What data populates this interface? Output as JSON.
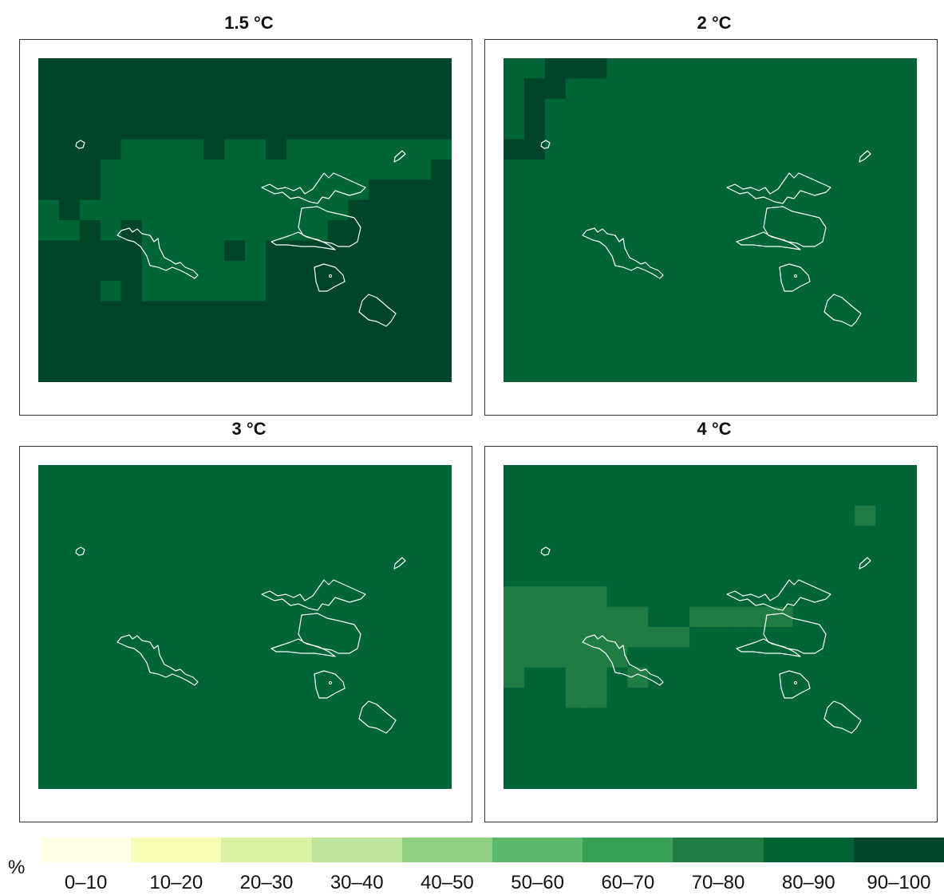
{
  "panels": [
    {
      "title": "1.5 °C",
      "base_class": "90–100",
      "cells": [
        {
          "c": 4,
          "r": 4,
          "v": "80–90"
        },
        {
          "c": 5,
          "r": 4,
          "v": "80–90"
        },
        {
          "c": 6,
          "r": 4,
          "v": "80–90"
        },
        {
          "c": 7,
          "r": 4,
          "v": "80–90"
        },
        {
          "c": 9,
          "r": 4,
          "v": "80–90"
        },
        {
          "c": 10,
          "r": 4,
          "v": "80–90"
        },
        {
          "c": 12,
          "r": 4,
          "v": "80–90"
        },
        {
          "c": 13,
          "r": 4,
          "v": "80–90"
        },
        {
          "c": 14,
          "r": 4,
          "v": "80–90"
        },
        {
          "c": 15,
          "r": 4,
          "v": "80–90"
        },
        {
          "c": 16,
          "r": 4,
          "v": "80–90"
        },
        {
          "c": 17,
          "r": 4,
          "v": "80–90"
        },
        {
          "c": 18,
          "r": 4,
          "v": "80–90"
        },
        {
          "c": 19,
          "r": 4,
          "v": "80–90"
        },
        {
          "c": 21,
          "r": 4,
          "v": "80–90"
        },
        {
          "c": 3,
          "r": 5,
          "v": "80–90"
        },
        {
          "c": 4,
          "r": 5,
          "v": "80–90"
        },
        {
          "c": 5,
          "r": 5,
          "v": "80–90"
        },
        {
          "c": 6,
          "r": 5,
          "v": "80–90"
        },
        {
          "c": 7,
          "r": 5,
          "v": "80–90"
        },
        {
          "c": 8,
          "r": 5,
          "v": "80–90"
        },
        {
          "c": 9,
          "r": 5,
          "v": "80–90"
        },
        {
          "c": 10,
          "r": 5,
          "v": "80–90"
        },
        {
          "c": 11,
          "r": 5,
          "v": "80–90"
        },
        {
          "c": 12,
          "r": 5,
          "v": "80–90"
        },
        {
          "c": 13,
          "r": 5,
          "v": "80–90"
        },
        {
          "c": 14,
          "r": 5,
          "v": "80–90"
        },
        {
          "c": 15,
          "r": 5,
          "v": "80–90"
        },
        {
          "c": 16,
          "r": 5,
          "v": "80–90"
        },
        {
          "c": 17,
          "r": 5,
          "v": "80–90"
        },
        {
          "c": 18,
          "r": 5,
          "v": "80–90"
        },
        {
          "c": 3,
          "r": 6,
          "v": "80–90"
        },
        {
          "c": 4,
          "r": 6,
          "v": "80–90"
        },
        {
          "c": 5,
          "r": 6,
          "v": "80–90"
        },
        {
          "c": 6,
          "r": 6,
          "v": "80–90"
        },
        {
          "c": 7,
          "r": 6,
          "v": "80–90"
        },
        {
          "c": 8,
          "r": 6,
          "v": "80–90"
        },
        {
          "c": 9,
          "r": 6,
          "v": "80–90"
        },
        {
          "c": 10,
          "r": 6,
          "v": "80–90"
        },
        {
          "c": 11,
          "r": 6,
          "v": "80–90"
        },
        {
          "c": 12,
          "r": 6,
          "v": "80–90"
        },
        {
          "c": 13,
          "r": 6,
          "v": "80–90"
        },
        {
          "c": 14,
          "r": 6,
          "v": "80–90"
        },
        {
          "c": 15,
          "r": 6,
          "v": "80–90"
        },
        {
          "c": 0,
          "r": 7,
          "v": "80–90"
        },
        {
          "c": 2,
          "r": 7,
          "v": "80–90"
        },
        {
          "c": 3,
          "r": 7,
          "v": "80–90"
        },
        {
          "c": 4,
          "r": 7,
          "v": "80–90"
        },
        {
          "c": 5,
          "r": 7,
          "v": "80–90"
        },
        {
          "c": 6,
          "r": 7,
          "v": "80–90"
        },
        {
          "c": 7,
          "r": 7,
          "v": "80–90"
        },
        {
          "c": 8,
          "r": 7,
          "v": "80–90"
        },
        {
          "c": 9,
          "r": 7,
          "v": "80–90"
        },
        {
          "c": 10,
          "r": 7,
          "v": "80–90"
        },
        {
          "c": 11,
          "r": 7,
          "v": "80–90"
        },
        {
          "c": 12,
          "r": 7,
          "v": "80–90"
        },
        {
          "c": 13,
          "r": 7,
          "v": "80–90"
        },
        {
          "c": 14,
          "r": 7,
          "v": "80–90"
        },
        {
          "c": 0,
          "r": 8,
          "v": "80–90"
        },
        {
          "c": 1,
          "r": 8,
          "v": "80–90"
        },
        {
          "c": 3,
          "r": 8,
          "v": "80–90"
        },
        {
          "c": 5,
          "r": 8,
          "v": "80–90"
        },
        {
          "c": 6,
          "r": 8,
          "v": "80–90"
        },
        {
          "c": 7,
          "r": 8,
          "v": "80–90"
        },
        {
          "c": 8,
          "r": 8,
          "v": "80–90"
        },
        {
          "c": 9,
          "r": 8,
          "v": "80–90"
        },
        {
          "c": 10,
          "r": 8,
          "v": "80–90"
        },
        {
          "c": 11,
          "r": 8,
          "v": "80–90"
        },
        {
          "c": 12,
          "r": 8,
          "v": "80–90"
        },
        {
          "c": 13,
          "r": 8,
          "v": "80–90"
        },
        {
          "c": 5,
          "r": 9,
          "v": "80–90"
        },
        {
          "c": 6,
          "r": 9,
          "v": "80–90"
        },
        {
          "c": 7,
          "r": 9,
          "v": "80–90"
        },
        {
          "c": 8,
          "r": 9,
          "v": "80–90"
        },
        {
          "c": 10,
          "r": 9,
          "v": "80–90"
        },
        {
          "c": 5,
          "r": 10,
          "v": "80–90"
        },
        {
          "c": 6,
          "r": 10,
          "v": "80–90"
        },
        {
          "c": 7,
          "r": 10,
          "v": "80–90"
        },
        {
          "c": 8,
          "r": 10,
          "v": "80–90"
        },
        {
          "c": 9,
          "r": 10,
          "v": "80–90"
        },
        {
          "c": 10,
          "r": 10,
          "v": "80–90"
        },
        {
          "c": 3,
          "r": 11,
          "v": "80–90"
        },
        {
          "c": 5,
          "r": 11,
          "v": "80–90"
        },
        {
          "c": 6,
          "r": 11,
          "v": "80–90"
        },
        {
          "c": 7,
          "r": 11,
          "v": "80–90"
        },
        {
          "c": 8,
          "r": 11,
          "v": "80–90"
        },
        {
          "c": 9,
          "r": 11,
          "v": "80–90"
        },
        {
          "c": 10,
          "r": 11,
          "v": "80–90"
        }
      ]
    },
    {
      "title": "2 °C",
      "base_class": "80–90",
      "cells": [
        {
          "c": 2,
          "r": 0,
          "v": "90–100"
        },
        {
          "c": 3,
          "r": 0,
          "v": "90–100"
        },
        {
          "c": 4,
          "r": 0,
          "v": "90–100"
        },
        {
          "c": 1,
          "r": 1,
          "v": "90–100"
        },
        {
          "c": 2,
          "r": 1,
          "v": "90–100"
        },
        {
          "c": 1,
          "r": 2,
          "v": "90–100"
        },
        {
          "c": 1,
          "r": 3,
          "v": "90–100"
        },
        {
          "c": 0,
          "r": 4,
          "v": "90–100"
        },
        {
          "c": 1,
          "r": 4,
          "v": "90–100"
        }
      ]
    },
    {
      "title": "3 °C",
      "base_class": "80–90",
      "cells": []
    },
    {
      "title": "4 °C",
      "base_class": "80–90",
      "cells": [
        {
          "c": 17,
          "r": 2,
          "v": "70–80"
        },
        {
          "c": 0,
          "r": 6,
          "v": "70–80"
        },
        {
          "c": 1,
          "r": 6,
          "v": "70–80"
        },
        {
          "c": 2,
          "r": 6,
          "v": "70–80"
        },
        {
          "c": 3,
          "r": 6,
          "v": "70–80"
        },
        {
          "c": 4,
          "r": 6,
          "v": "70–80"
        },
        {
          "c": 0,
          "r": 7,
          "v": "70–80"
        },
        {
          "c": 1,
          "r": 7,
          "v": "70–80"
        },
        {
          "c": 2,
          "r": 7,
          "v": "70–80"
        },
        {
          "c": 3,
          "r": 7,
          "v": "70–80"
        },
        {
          "c": 4,
          "r": 7,
          "v": "70–80"
        },
        {
          "c": 5,
          "r": 7,
          "v": "70–80"
        },
        {
          "c": 6,
          "r": 7,
          "v": "70–80"
        },
        {
          "c": 9,
          "r": 7,
          "v": "70–80"
        },
        {
          "c": 10,
          "r": 7,
          "v": "70–80"
        },
        {
          "c": 11,
          "r": 7,
          "v": "70–80"
        },
        {
          "c": 12,
          "r": 7,
          "v": "70–80"
        },
        {
          "c": 13,
          "r": 7,
          "v": "70–80"
        },
        {
          "c": 0,
          "r": 8,
          "v": "70–80"
        },
        {
          "c": 1,
          "r": 8,
          "v": "70–80"
        },
        {
          "c": 2,
          "r": 8,
          "v": "70–80"
        },
        {
          "c": 3,
          "r": 8,
          "v": "70–80"
        },
        {
          "c": 4,
          "r": 8,
          "v": "70–80"
        },
        {
          "c": 5,
          "r": 8,
          "v": "70–80"
        },
        {
          "c": 6,
          "r": 8,
          "v": "70–80"
        },
        {
          "c": 7,
          "r": 8,
          "v": "70–80"
        },
        {
          "c": 8,
          "r": 8,
          "v": "70–80"
        },
        {
          "c": 0,
          "r": 9,
          "v": "70–80"
        },
        {
          "c": 1,
          "r": 9,
          "v": "70–80"
        },
        {
          "c": 2,
          "r": 9,
          "v": "70–80"
        },
        {
          "c": 3,
          "r": 9,
          "v": "70–80"
        },
        {
          "c": 4,
          "r": 9,
          "v": "70–80"
        },
        {
          "c": 5,
          "r": 9,
          "v": "70–80"
        },
        {
          "c": 0,
          "r": 10,
          "v": "70–80"
        },
        {
          "c": 3,
          "r": 10,
          "v": "70–80"
        },
        {
          "c": 4,
          "r": 10,
          "v": "70–80"
        },
        {
          "c": 6,
          "r": 10,
          "v": "70–80"
        },
        {
          "c": 3,
          "r": 11,
          "v": "70–80"
        },
        {
          "c": 4,
          "r": 11,
          "v": "70–80"
        }
      ]
    }
  ],
  "legend": {
    "unit": "%",
    "classes": [
      {
        "label": "0–10",
        "color": "#ffffe5"
      },
      {
        "label": "10–20",
        "color": "#f7fcb9"
      },
      {
        "label": "20–30",
        "color": "#d9f0a3"
      },
      {
        "label": "30–40",
        "color": "#bde39a"
      },
      {
        "label": "40–50",
        "color": "#8fd082"
      },
      {
        "label": "50–60",
        "color": "#5cb96b"
      },
      {
        "label": "60–70",
        "color": "#37a055"
      },
      {
        "label": "70–80",
        "color": "#1f7c43"
      },
      {
        "label": "80–90",
        "color": "#006536"
      },
      {
        "label": "90–100",
        "color": "#00442a"
      }
    ]
  }
}
